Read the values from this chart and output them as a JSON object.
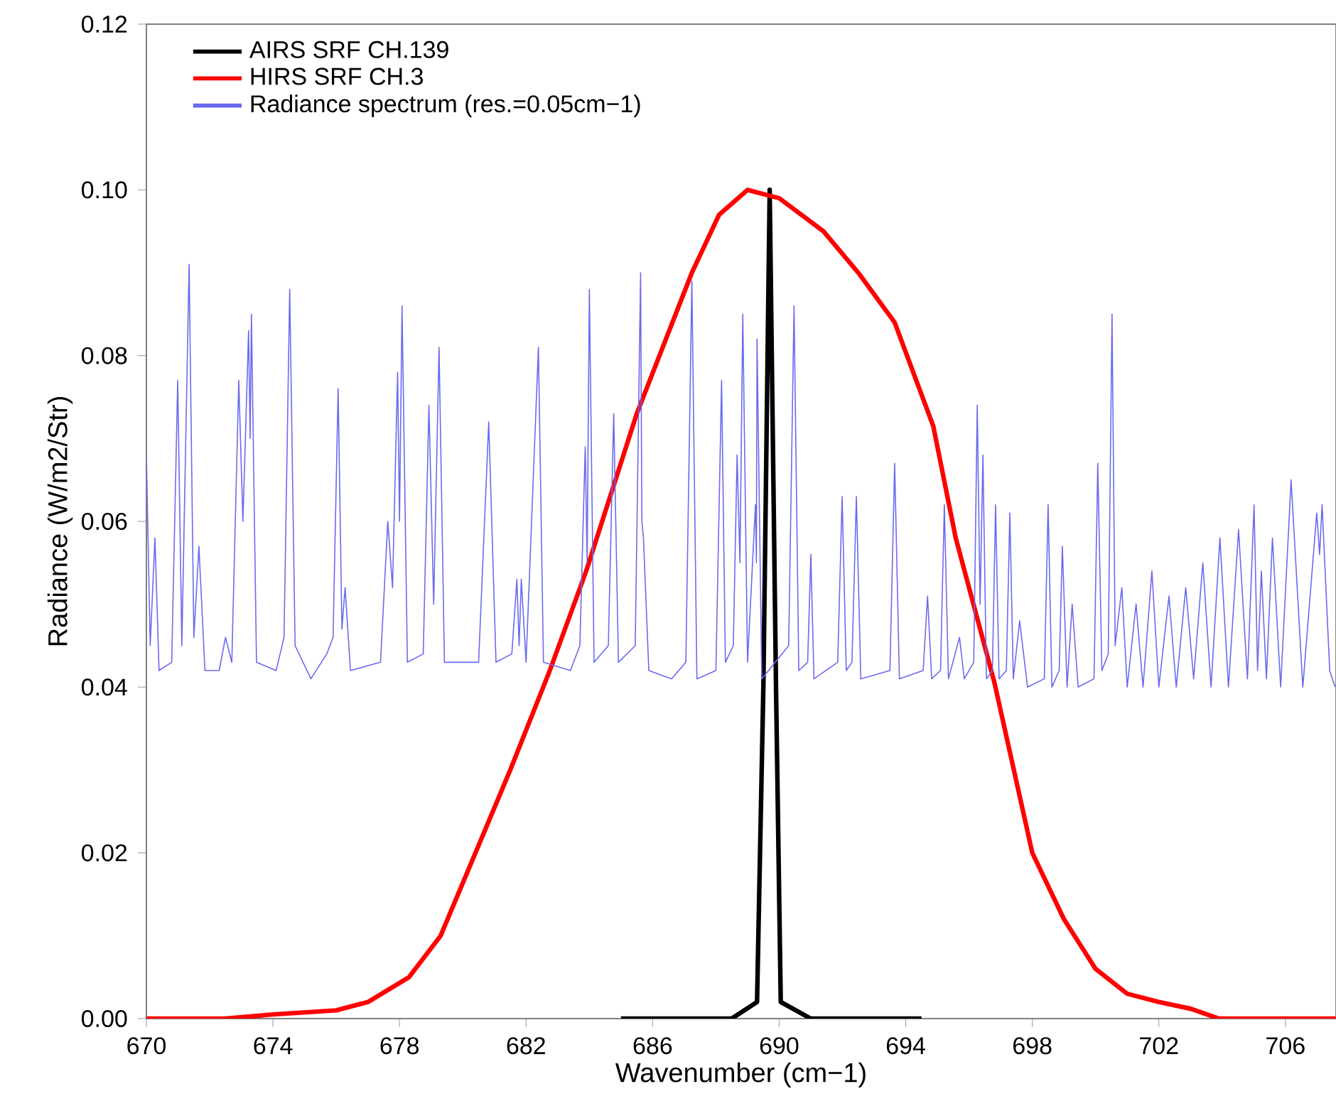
{
  "chart_data": {
    "type": "line",
    "xlabel": "Wavenumber (cm−1)",
    "ylabel": "Radiance (W/m2/Str)",
    "xlim": [
      670,
      707.6
    ],
    "ylim": [
      0,
      0.12
    ],
    "xticks": [
      670,
      674,
      678,
      682,
      686,
      690,
      694,
      698,
      702,
      706
    ],
    "yticks": [
      {
        "value": 0,
        "label": "0.00"
      },
      {
        "value": 0.02,
        "label": "0.02"
      },
      {
        "value": 0.04,
        "label": "0.04"
      },
      {
        "value": 0.06,
        "label": "0.06"
      },
      {
        "value": 0.08,
        "label": "0.08"
      },
      {
        "value": 0.1,
        "label": "0.10"
      },
      {
        "value": 0.12,
        "label": "0.12"
      }
    ],
    "legend": "top left",
    "series": [
      {
        "name": "AIRS SRF CH.139",
        "color": "#000000",
        "x": [
          685.0,
          688.5,
          689.3,
          689.5,
          689.7,
          689.9,
          690.05,
          691.0,
          694.5
        ],
        "values": [
          0,
          0,
          0.002,
          0.04,
          0.1,
          0.04,
          0.002,
          0,
          0
        ]
      },
      {
        "name": "HIRS SRF CH.3",
        "color": "#ff0000",
        "x": [
          670,
          672.5,
          674,
          676,
          677,
          678.3,
          679.3,
          680.4,
          681.5,
          682.75,
          683.9,
          685.5,
          687.24,
          688.1,
          689.0,
          690.0,
          691.4,
          692.5,
          693.65,
          694.87,
          695.58,
          696.8,
          698.0,
          699.0,
          700.0,
          701.0,
          702.0,
          703.0,
          703.9,
          707.6
        ],
        "values": [
          0,
          0,
          0.0005,
          0.001,
          0.002,
          0.005,
          0.01,
          0.02,
          0.03,
          0.042,
          0.054,
          0.073,
          0.09,
          0.097,
          0.1,
          0.099,
          0.095,
          0.09,
          0.084,
          0.0715,
          0.058,
          0.0406,
          0.02,
          0.012,
          0.006,
          0.003,
          0.002,
          0.0012,
          0,
          0
        ]
      },
      {
        "name": "Radiance spectrum (res.=0.05cm−1)",
        "color": "#6a6af0",
        "x": [
          670.0,
          670.12,
          670.27,
          670.4,
          670.8,
          670.99,
          671.12,
          671.35,
          671.5,
          671.66,
          671.85,
          672.3,
          672.5,
          672.7,
          672.92,
          673.05,
          673.23,
          673.28,
          673.32,
          673.48,
          674.1,
          674.35,
          674.53,
          674.7,
          675.2,
          675.7,
          675.9,
          676.06,
          676.18,
          676.28,
          676.45,
          677.4,
          677.63,
          677.78,
          677.94,
          678.0,
          678.08,
          678.25,
          678.75,
          678.93,
          679.08,
          679.25,
          679.42,
          680.5,
          680.82,
          681.05,
          681.55,
          681.71,
          681.78,
          681.85,
          682.0,
          682.39,
          682.55,
          683.4,
          683.7,
          683.87,
          683.93,
          684.0,
          684.15,
          684.6,
          684.77,
          684.92,
          685.45,
          685.62,
          685.66,
          685.71,
          685.88,
          686.6,
          687.05,
          687.24,
          687.4,
          688.0,
          688.18,
          688.3,
          688.55,
          688.67,
          688.76,
          688.85,
          689.0,
          689.25,
          689.28,
          689.3,
          689.45,
          690.3,
          690.47,
          690.62,
          690.9,
          691.0,
          691.1,
          691.85,
          691.99,
          692.12,
          692.3,
          692.44,
          692.58,
          693.5,
          693.65,
          693.8,
          694.55,
          694.69,
          694.82,
          695.1,
          695.22,
          695.35,
          695.7,
          695.85,
          696.15,
          696.26,
          696.35,
          696.44,
          696.55,
          696.74,
          696.84,
          696.95,
          697.18,
          697.29,
          697.4,
          697.6,
          697.85,
          698.38,
          698.5,
          698.62,
          698.85,
          698.95,
          699.1,
          699.26,
          699.45,
          699.95,
          700.07,
          700.2,
          700.4,
          700.52,
          700.62,
          700.83,
          701.0,
          701.28,
          701.5,
          701.78,
          702.0,
          702.32,
          702.55,
          702.85,
          703.1,
          703.39,
          703.65,
          703.93,
          704.2,
          704.52,
          704.8,
          705.01,
          705.12,
          705.24,
          705.4,
          705.59,
          705.85,
          706.18,
          706.55,
          706.99,
          707.08,
          707.16,
          707.4,
          707.57
        ],
        "values": [
          0.068,
          0.045,
          0.058,
          0.042,
          0.043,
          0.077,
          0.045,
          0.091,
          0.046,
          0.057,
          0.042,
          0.042,
          0.046,
          0.043,
          0.077,
          0.06,
          0.083,
          0.07,
          0.085,
          0.043,
          0.042,
          0.046,
          0.088,
          0.045,
          0.041,
          0.044,
          0.046,
          0.076,
          0.047,
          0.052,
          0.042,
          0.043,
          0.06,
          0.052,
          0.078,
          0.06,
          0.086,
          0.043,
          0.044,
          0.074,
          0.05,
          0.081,
          0.043,
          0.043,
          0.072,
          0.043,
          0.044,
          0.053,
          0.045,
          0.053,
          0.043,
          0.081,
          0.043,
          0.042,
          0.045,
          0.069,
          0.055,
          0.088,
          0.043,
          0.045,
          0.073,
          0.043,
          0.045,
          0.09,
          0.06,
          0.058,
          0.042,
          0.041,
          0.043,
          0.089,
          0.041,
          0.042,
          0.077,
          0.043,
          0.045,
          0.068,
          0.055,
          0.085,
          0.043,
          0.062,
          0.055,
          0.082,
          0.041,
          0.045,
          0.086,
          0.042,
          0.043,
          0.056,
          0.041,
          0.043,
          0.063,
          0.042,
          0.043,
          0.063,
          0.041,
          0.042,
          0.067,
          0.041,
          0.042,
          0.051,
          0.041,
          0.042,
          0.062,
          0.041,
          0.046,
          0.041,
          0.043,
          0.074,
          0.05,
          0.068,
          0.041,
          0.042,
          0.062,
          0.041,
          0.042,
          0.061,
          0.041,
          0.048,
          0.04,
          0.041,
          0.062,
          0.04,
          0.042,
          0.057,
          0.04,
          0.05,
          0.04,
          0.041,
          0.067,
          0.042,
          0.044,
          0.085,
          0.045,
          0.052,
          0.04,
          0.05,
          0.04,
          0.054,
          0.04,
          0.051,
          0.04,
          0.052,
          0.041,
          0.055,
          0.04,
          0.058,
          0.04,
          0.059,
          0.041,
          0.062,
          0.042,
          0.054,
          0.041,
          0.058,
          0.04,
          0.065,
          0.04,
          0.061,
          0.056,
          0.062,
          0.042,
          0.04
        ]
      }
    ]
  }
}
